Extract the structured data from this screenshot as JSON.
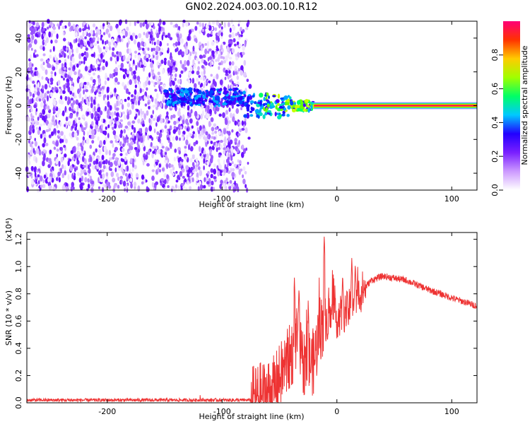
{
  "title": "GN02.2024.003.00.10.R12",
  "chart_data": [
    {
      "type": "heatmap",
      "xlabel": "Height of straight line (km)",
      "ylabel": "Frequency (Hz)",
      "xlim": [
        -270,
        122
      ],
      "ylim": [
        -50,
        50
      ],
      "xticks": [
        -200,
        -100,
        0,
        100
      ],
      "yticks": [
        -40,
        -20,
        0,
        20,
        40
      ],
      "colorbar": {
        "label": "Normalized spectral amplitude",
        "range": [
          0,
          1
        ],
        "ticks": [
          "0.0",
          "0.2",
          "0.4",
          "0.6",
          "0.8"
        ],
        "colors": [
          "#ffffff",
          "#cc99ff",
          "#7a1fff",
          "#2200ff",
          "#00c8ff",
          "#00ff66",
          "#a0ff00",
          "#ffcc00",
          "#ff3300",
          "#ff0077"
        ]
      },
      "features": [
        {
          "name": "noise",
          "x_range": [
            -270,
            -75
          ],
          "y_range": [
            -50,
            50
          ],
          "amplitude": 0.12
        },
        {
          "name": "signal",
          "x_range": [
            -75,
            122
          ],
          "center_hz": 0,
          "amplitude": 0.9
        }
      ]
    },
    {
      "type": "line",
      "xlabel": "Height of straight line (km)",
      "ylabel": "SNR (10 * v/v)",
      "multiplier": "(x10⁴)",
      "xlim": [
        -270,
        122
      ],
      "ylim": [
        0,
        1.25
      ],
      "xticks": [
        -200,
        -100,
        0,
        100
      ],
      "yticks": [
        "0.0",
        "0.2",
        "0.4",
        "0.6",
        "0.8",
        "1.0",
        "1.2"
      ],
      "series_color": "#ee3333",
      "keypoints": [
        {
          "x": -270,
          "y": 0.02
        },
        {
          "x": -150,
          "y": 0.02
        },
        {
          "x": -75,
          "y": 0.02
        },
        {
          "x": -55,
          "y": 0.1
        },
        {
          "x": -40,
          "y": 0.35
        },
        {
          "x": -35,
          "y": 0.45
        },
        {
          "x": -30,
          "y": 0.3
        },
        {
          "x": -20,
          "y": 0.3
        },
        {
          "x": -15,
          "y": 0.55
        },
        {
          "x": -10,
          "y": 0.6
        },
        {
          "x": 0,
          "y": 0.62
        },
        {
          "x": 10,
          "y": 0.68
        },
        {
          "x": 20,
          "y": 0.8
        },
        {
          "x": 30,
          "y": 0.9
        },
        {
          "x": 40,
          "y": 0.93
        },
        {
          "x": 60,
          "y": 0.9
        },
        {
          "x": 80,
          "y": 0.83
        },
        {
          "x": 100,
          "y": 0.77
        },
        {
          "x": 122,
          "y": 0.71
        }
      ],
      "spikes": [
        {
          "x": -37,
          "y": 0.92
        },
        {
          "x": -33,
          "y": 0.85
        },
        {
          "x": -25,
          "y": 0.75
        },
        {
          "x": -11,
          "y": 1.23
        },
        {
          "x": -7,
          "y": 0.88
        },
        {
          "x": -4,
          "y": 0.78
        },
        {
          "x": 5,
          "y": 0.95
        },
        {
          "x": 13,
          "y": 1.07
        },
        {
          "x": 16,
          "y": 1.03
        },
        {
          "x": -119,
          "y": 0.08
        },
        {
          "x": -106,
          "y": 0.06
        }
      ]
    }
  ]
}
